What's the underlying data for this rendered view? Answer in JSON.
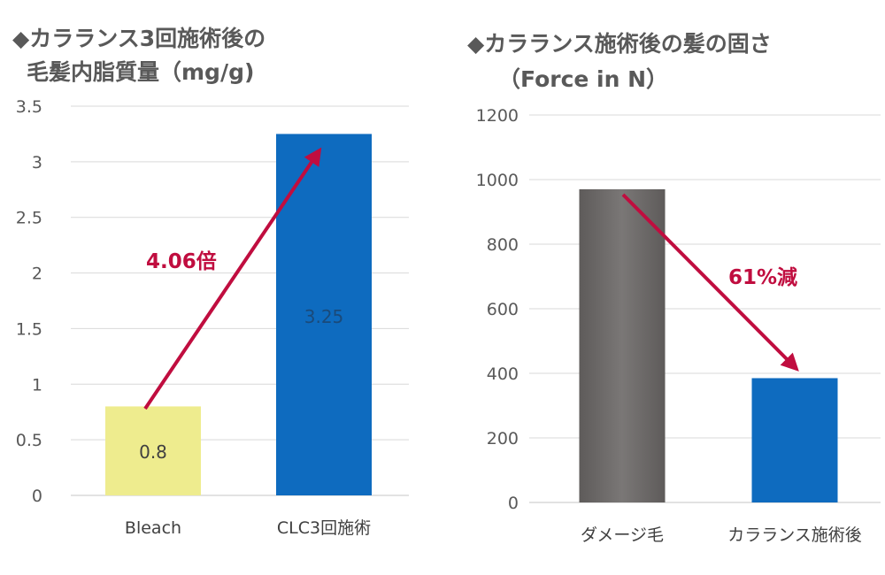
{
  "colors": {
    "arrow": "#c00d3f",
    "grid": "#d9d9d9"
  },
  "chart_data": [
    {
      "type": "bar",
      "title_lines": [
        "◆カラランス3回施術後の",
        "毛髪内脂質量（mg/g)"
      ],
      "categories": [
        "Bleach",
        "CLC3回施術"
      ],
      "values": [
        0.8,
        3.25
      ],
      "data_labels": [
        "0.8",
        "3.25"
      ],
      "bar_colors": [
        "#eeec8e",
        "#0e6bbf"
      ],
      "label_colors": [
        "#404040",
        "#1a4a7a"
      ],
      "ylim": [
        0,
        3.5
      ],
      "yticks": [
        0,
        0.5,
        1,
        1.5,
        2,
        2.5,
        3,
        3.5
      ],
      "ytick_labels": [
        "0",
        "0.5",
        "1",
        "1.5",
        "2",
        "2.5",
        "3",
        "3.5"
      ],
      "grid": true,
      "legend": "none",
      "annotation": {
        "text": "4.06倍",
        "direction": "up"
      }
    },
    {
      "type": "bar",
      "title_lines": [
        "◆カラランス施術後の髪の固さ",
        "（Force in N）"
      ],
      "categories": [
        "ダメージ毛",
        "カラランス施術後"
      ],
      "values": [
        970,
        385
      ],
      "data_labels": [],
      "bar_colors": [
        "#6b6867",
        "#0e6bbf"
      ],
      "ylim": [
        0,
        1200
      ],
      "yticks": [
        0,
        200,
        400,
        600,
        800,
        1000,
        1200
      ],
      "ytick_labels": [
        "0",
        "200",
        "400",
        "600",
        "800",
        "1000",
        "1200"
      ],
      "grid": true,
      "legend": "none",
      "annotation": {
        "text": "61%減",
        "direction": "down"
      }
    }
  ]
}
